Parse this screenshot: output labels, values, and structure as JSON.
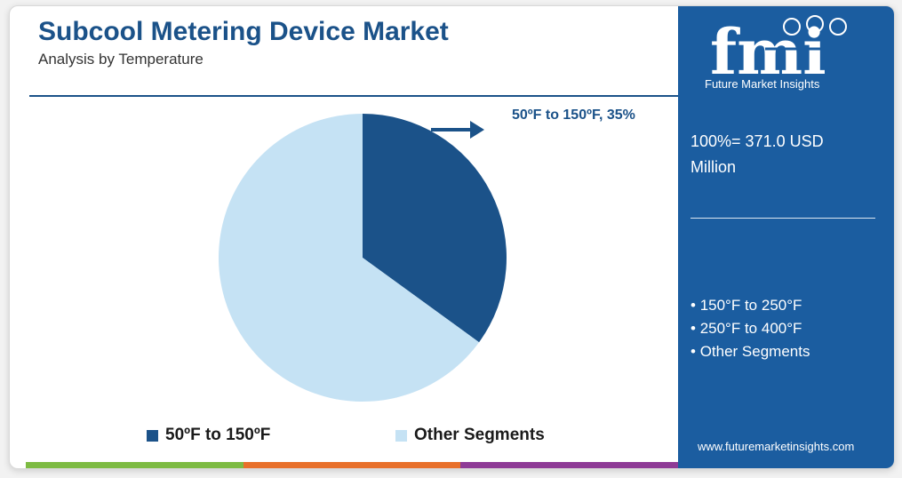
{
  "header": {
    "title": "Subcool Metering Device Market",
    "subtitle": "Analysis by Temperature"
  },
  "chart_data": {
    "type": "pie",
    "title": "Subcool Metering Device Market",
    "subtitle": "Analysis by Temperature",
    "slices": [
      {
        "label": "50ºF to 150ºF",
        "value": 35,
        "color": "#1b5289"
      },
      {
        "label": "Other Segments",
        "value": 65,
        "color": "#c5e2f4"
      }
    ],
    "callout": "50ºF to 150ºF, 35%",
    "legend": {
      "placement": "bottom"
    }
  },
  "legend_items": [
    {
      "label": "50ºF to 150ºF",
      "color": "#1b5289"
    },
    {
      "label": "Other Segments",
      "color": "#c5e2f4"
    }
  ],
  "side_panel": {
    "logo_text": "fmi",
    "logo_tagline": "Future Market Insights",
    "total": "100%= 371.0 USD Million",
    "segments": [
      "150°F to 250°F",
      "250°F to 400°F",
      "Other Segments"
    ],
    "website": "www.futuremarketinsights.com"
  },
  "colors": {
    "brand_blue": "#1b5da0",
    "title_blue": "#1b5289",
    "band": [
      "#7dbb42",
      "#e8702a",
      "#8e3a96"
    ]
  }
}
